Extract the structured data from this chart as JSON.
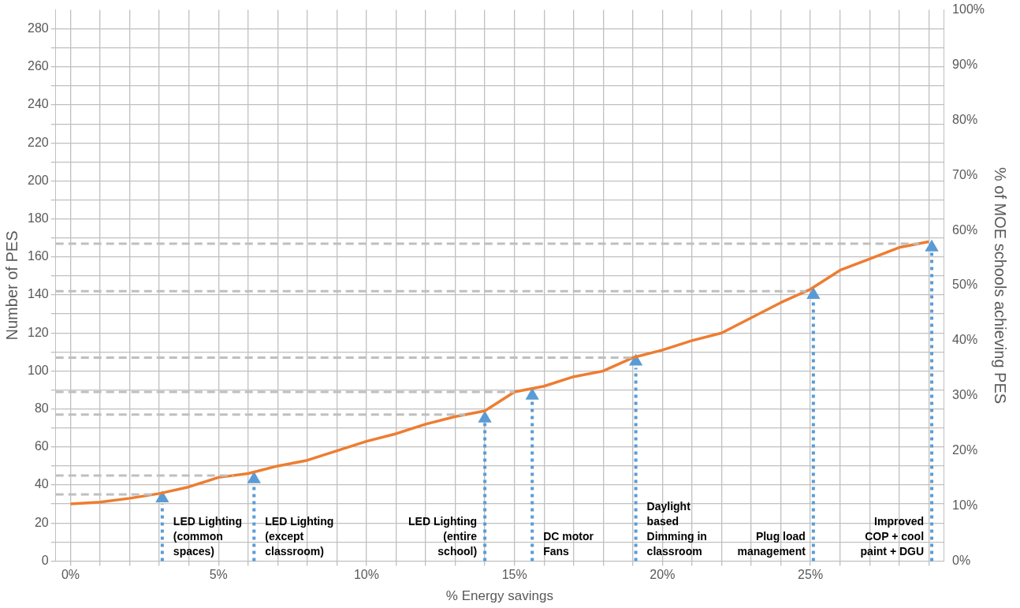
{
  "chart_data": {
    "type": "line",
    "xlabel": "% Energy savings",
    "ylabel": "Number of PES",
    "y2label": "% of MOE schools achieving PES",
    "x": [
      0,
      1,
      2,
      3,
      4,
      5,
      6,
      7,
      8,
      9,
      10,
      11,
      12,
      13,
      14,
      14.5,
      15,
      16,
      17,
      18,
      19,
      20,
      21,
      22,
      23,
      24,
      25,
      26,
      27,
      28,
      29
    ],
    "series": [
      {
        "color": "#ed7d31",
        "values": [
          30,
          31,
          33,
          35.5,
          39,
          44,
          46,
          50,
          53,
          58,
          63,
          67,
          72,
          76,
          79,
          84,
          89,
          92,
          97,
          100,
          107,
          111,
          116,
          120,
          128,
          136,
          143,
          153,
          159,
          165,
          168
        ]
      },
      {
        "type": "scatter",
        "color": "#5b9bd5",
        "x": [
          3.1,
          6.2,
          14,
          15.6,
          19.1,
          25.1,
          29.1
        ],
        "values": [
          33,
          43,
          75,
          87,
          105,
          140,
          165
        ]
      }
    ],
    "xlim": [
      -0.5,
      29.5
    ],
    "xticks": [
      {
        "value": 0,
        "label": "0%"
      },
      {
        "value": 1,
        "label": null
      },
      {
        "value": 2,
        "label": null
      },
      {
        "value": 3,
        "label": null
      },
      {
        "value": 4,
        "label": null
      },
      {
        "value": 5,
        "label": "5%"
      },
      {
        "value": 6,
        "label": null
      },
      {
        "value": 7,
        "label": null
      },
      {
        "value": 8,
        "label": null
      },
      {
        "value": 9,
        "label": null
      },
      {
        "value": 10,
        "label": "10%"
      },
      {
        "value": 11,
        "label": null
      },
      {
        "value": 12,
        "label": null
      },
      {
        "value": 13,
        "label": null
      },
      {
        "value": 14,
        "label": null
      },
      {
        "value": 15,
        "label": "15%"
      },
      {
        "value": 16,
        "label": null
      },
      {
        "value": 17,
        "label": null
      },
      {
        "value": 18,
        "label": null
      },
      {
        "value": 19,
        "label": null
      },
      {
        "value": 20,
        "label": "20%"
      },
      {
        "value": 21,
        "label": null
      },
      {
        "value": 22,
        "label": null
      },
      {
        "value": 23,
        "label": null
      },
      {
        "value": 24,
        "label": null
      },
      {
        "value": 25,
        "label": "25%"
      },
      {
        "value": 26,
        "label": null
      },
      {
        "value": 27,
        "label": null
      },
      {
        "value": 28,
        "label": null
      },
      {
        "value": 29,
        "label": null
      }
    ],
    "ylim": [
      0,
      290
    ],
    "yticks": [
      0,
      {
        "value": 10,
        "label": null
      },
      20,
      {
        "value": 30,
        "label": null
      },
      40,
      {
        "value": 50,
        "label": null
      },
      60,
      {
        "value": 70,
        "label": null
      },
      80,
      {
        "value": 90,
        "label": null
      },
      100,
      {
        "value": 110,
        "label": null
      },
      120,
      {
        "value": 130,
        "label": null
      },
      140,
      {
        "value": 150,
        "label": null
      },
      160,
      {
        "value": 170,
        "label": null
      },
      180,
      {
        "value": 190,
        "label": null
      },
      200,
      {
        "value": 210,
        "label": null
      },
      220,
      {
        "value": 230,
        "label": null
      },
      240,
      {
        "value": 250,
        "label": null
      },
      260,
      {
        "value": 270,
        "label": null
      },
      280
    ],
    "y2lim": [
      0,
      100
    ],
    "y2ticks": [
      {
        "value": 0,
        "label": "0%"
      },
      {
        "value": 10,
        "label": "10%"
      },
      {
        "value": 20,
        "label": "20%"
      },
      {
        "value": 30,
        "label": "30%"
      },
      {
        "value": 40,
        "label": "40%"
      },
      {
        "value": 50,
        "label": "50%"
      },
      {
        "value": 60,
        "label": "60%"
      },
      {
        "value": 70,
        "label": "70%"
      },
      {
        "value": 80,
        "label": "80%"
      },
      {
        "value": 90,
        "label": "90%"
      },
      {
        "value": 100,
        "label": "100%"
      }
    ],
    "grid": true,
    "legend": false,
    "line_style": "solid",
    "ref_lines": [
      {
        "axis": "y",
        "value": 35,
        "color": "#bfbfbf",
        "line_style": "dashed"
      },
      {
        "axis": "y",
        "value": 45,
        "color": "#bfbfbf",
        "line_style": "dashed"
      },
      {
        "axis": "y",
        "value": 77,
        "color": "#bfbfbf",
        "line_style": "dashed"
      },
      {
        "axis": "y",
        "value": 89,
        "color": "#bfbfbf",
        "line_style": "dashed"
      },
      {
        "axis": "y",
        "value": 107,
        "color": "#bfbfbf",
        "line_style": "dashed"
      },
      {
        "axis": "y",
        "value": 142,
        "color": "#bfbfbf",
        "line_style": "dashed"
      },
      {
        "axis": "y",
        "value": 167,
        "color": "#bfbfbf",
        "line_style": "dashed"
      },
      {
        "axis": "x",
        "value": 3.1,
        "label": "LED Lighting (common spaces)",
        "color": "#5b9bd5",
        "line_style": "dotted"
      },
      {
        "axis": "x",
        "value": 6.2,
        "label": "LED Lighting (except classroom)",
        "color": "#5b9bd5",
        "line_style": "dotted"
      },
      {
        "axis": "x",
        "value": 14,
        "label": "LED Lighting (entire school)",
        "color": "#5b9bd5",
        "line_style": "dotted"
      },
      {
        "axis": "x",
        "value": 15.6,
        "label": "DC motor Fans",
        "color": "#5b9bd5",
        "line_style": "dotted"
      },
      {
        "axis": "x",
        "value": 19.1,
        "label": "Daylight based Dimming in classroom",
        "color": "#5b9bd5",
        "line_style": "dotted"
      },
      {
        "axis": "x",
        "value": 25.1,
        "label": "Plug load management",
        "color": "#5b9bd5",
        "line_style": "dotted"
      },
      {
        "axis": "x",
        "value": 29.1,
        "label": "Improved COP + cool paint + DGU",
        "color": "#5b9bd5",
        "line_style": "dotted"
      }
    ]
  }
}
